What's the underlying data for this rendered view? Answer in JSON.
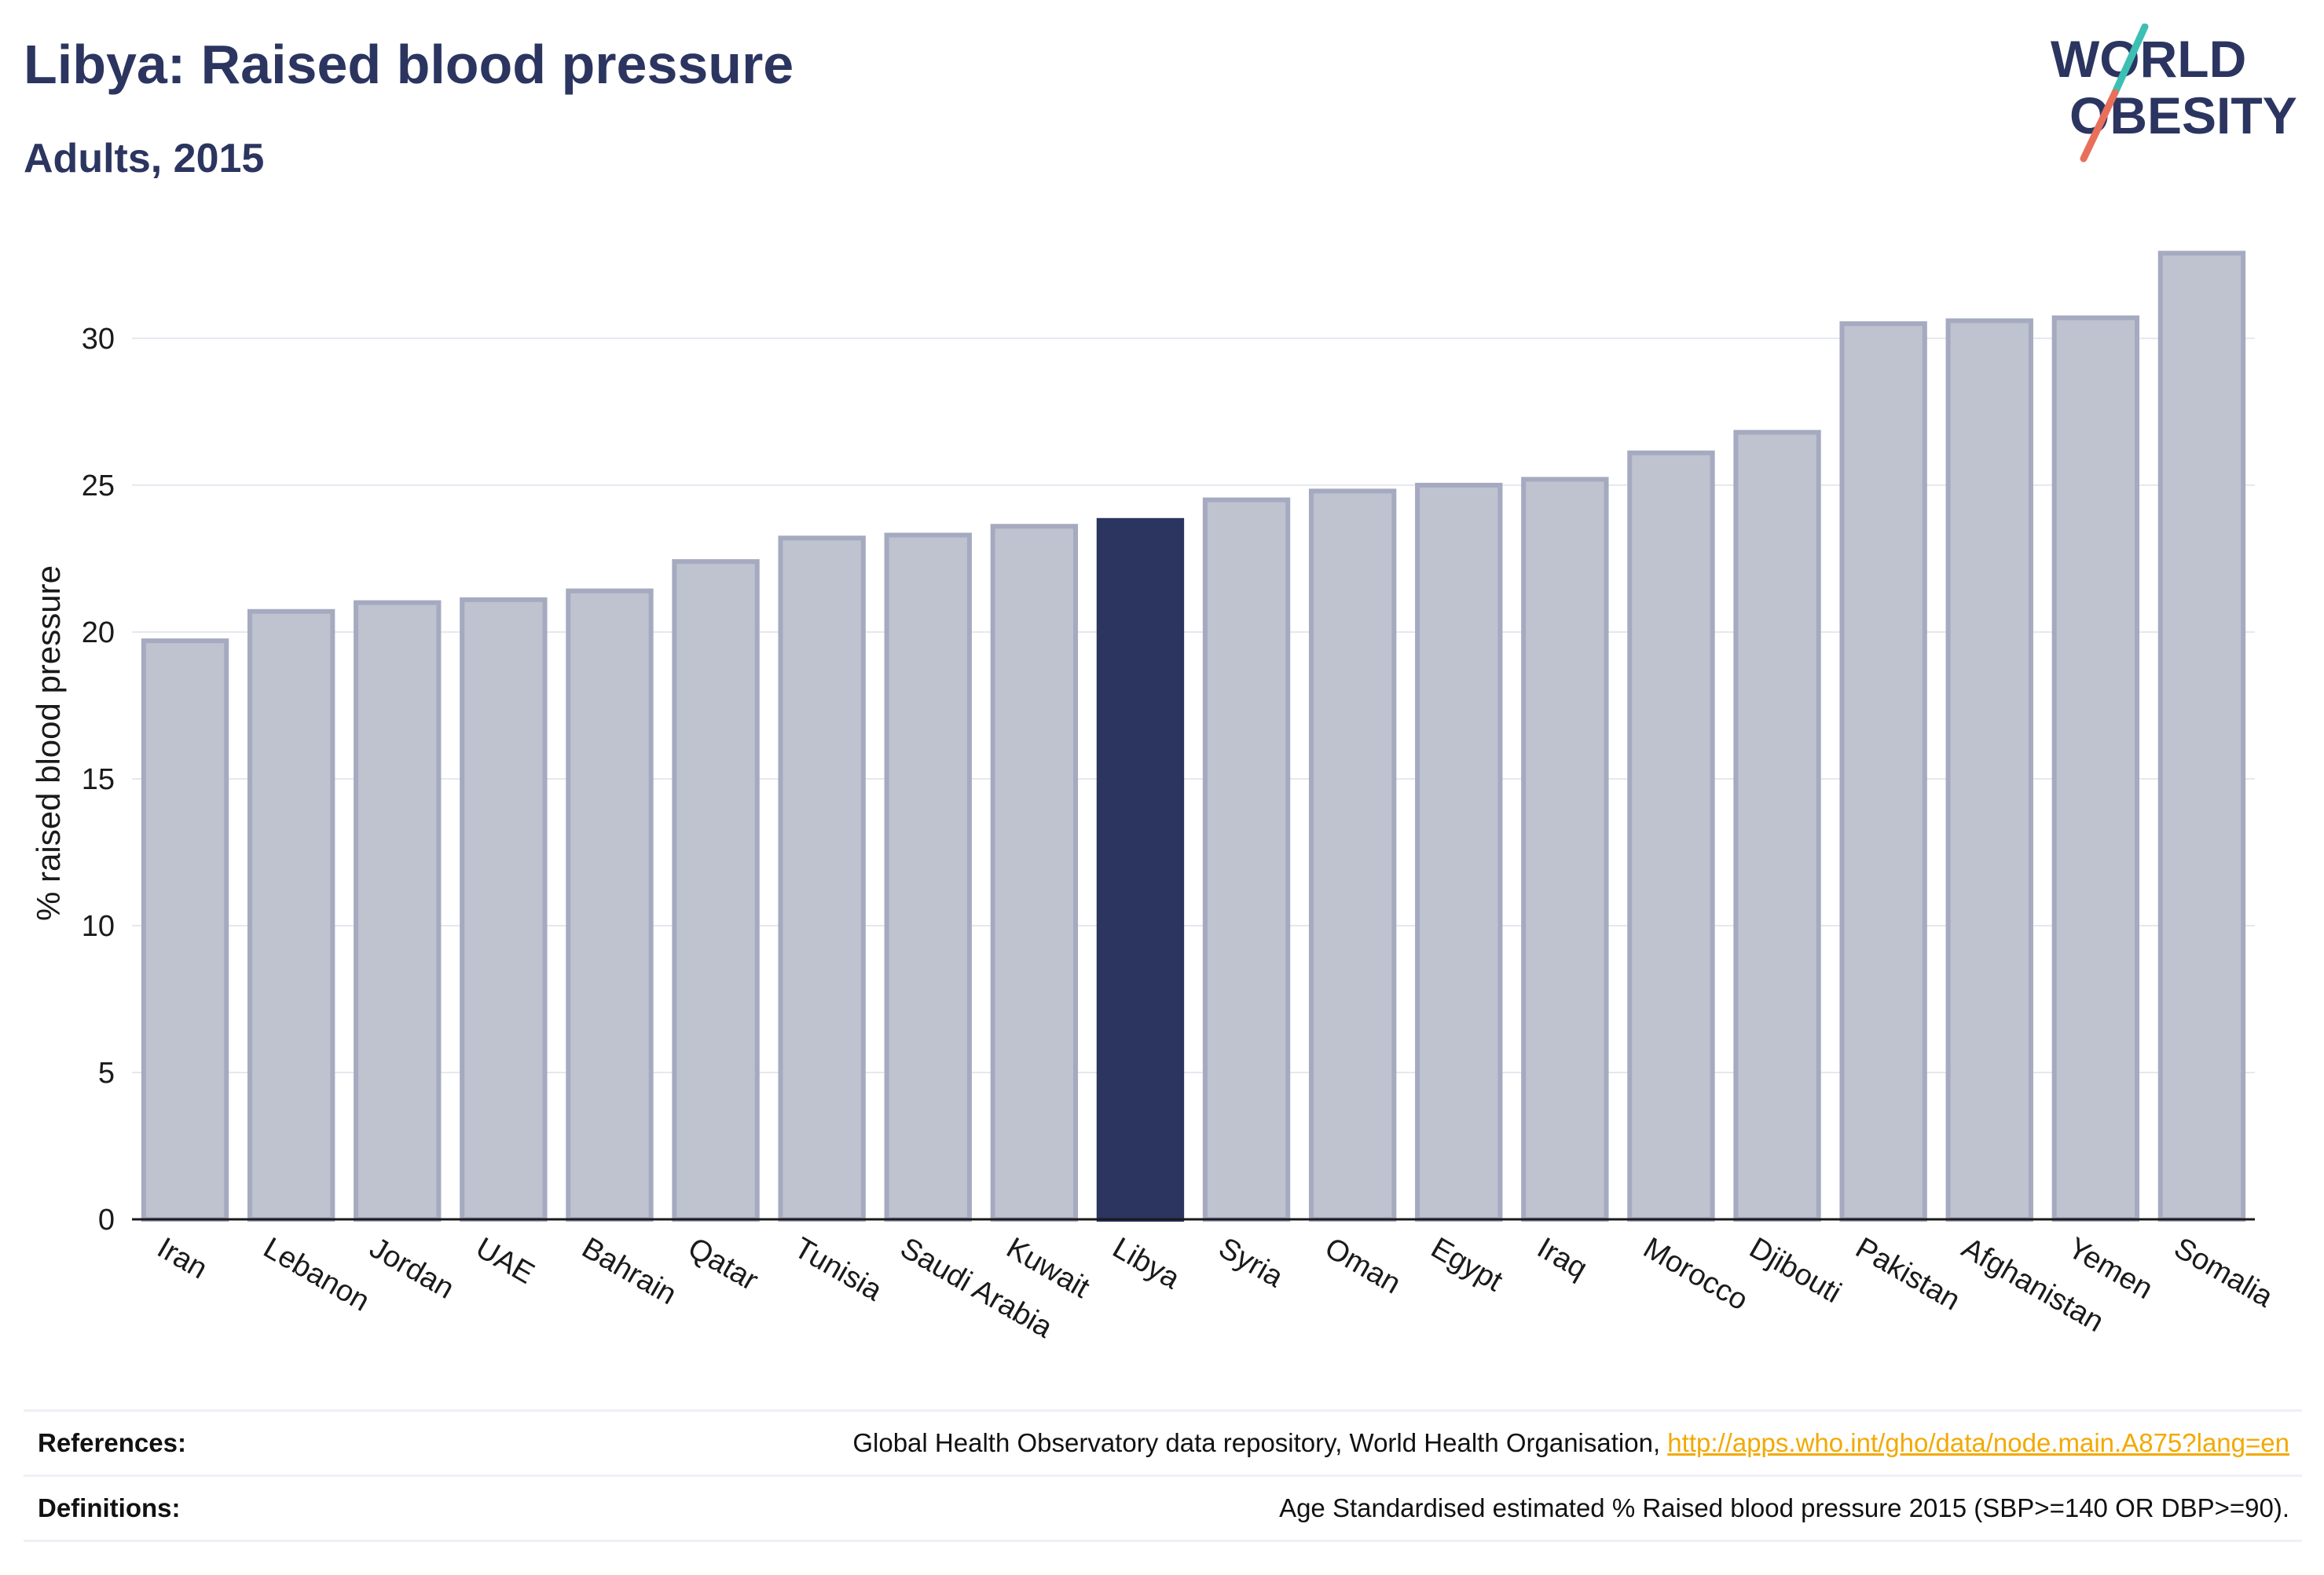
{
  "header": {
    "title": "Libya: Raised blood pressure",
    "subtitle": "Adults, 2015"
  },
  "logo": {
    "line1": "WORLD",
    "line2": "OBESITY",
    "text_color": "#2b3560",
    "slash_top_color": "#3dbfb4",
    "slash_bottom_color": "#e8705a"
  },
  "chart_data": {
    "type": "bar",
    "categories": [
      "Iran",
      "Lebanon",
      "Jordan",
      "UAE",
      "Bahrain",
      "Qatar",
      "Tunisia",
      "Saudi Arabia",
      "Kuwait",
      "Libya",
      "Syria",
      "Oman",
      "Egypt",
      "Iraq",
      "Morocco",
      "Djibouti",
      "Pakistan",
      "Afghanistan",
      "Yemen",
      "Somalia"
    ],
    "values": [
      19.7,
      20.7,
      21.0,
      21.1,
      21.4,
      22.4,
      23.2,
      23.3,
      23.6,
      23.8,
      24.5,
      24.8,
      25.0,
      25.2,
      26.1,
      26.8,
      30.5,
      30.6,
      30.7,
      32.9
    ],
    "highlight": "Libya",
    "title": "Libya: Raised blood pressure",
    "subtitle": "Adults, 2015",
    "xlabel": "",
    "ylabel": "% raised blood pressure",
    "ylim": [
      0,
      33.5
    ],
    "yticks": [
      0,
      5,
      10,
      15,
      20,
      25,
      30
    ],
    "grid": true,
    "legend": "none",
    "colors": {
      "bar_fill": "#bfc2cf",
      "bar_stroke": "#a5aac0",
      "highlight_fill": "#2b3560",
      "gridline": "#e6e8ef",
      "axis": "#1a1a1a"
    }
  },
  "footer": {
    "references_label": "References:",
    "references_text": "Global Health Observatory data repository, World Health Organisation, ",
    "references_link": "http://apps.who.int/gho/data/node.main.A875?lang=en",
    "definitions_label": "Definitions:",
    "definitions_text": "Age Standardised estimated % Raised blood pressure 2015 (SBP>=140 OR DBP>=90)."
  }
}
